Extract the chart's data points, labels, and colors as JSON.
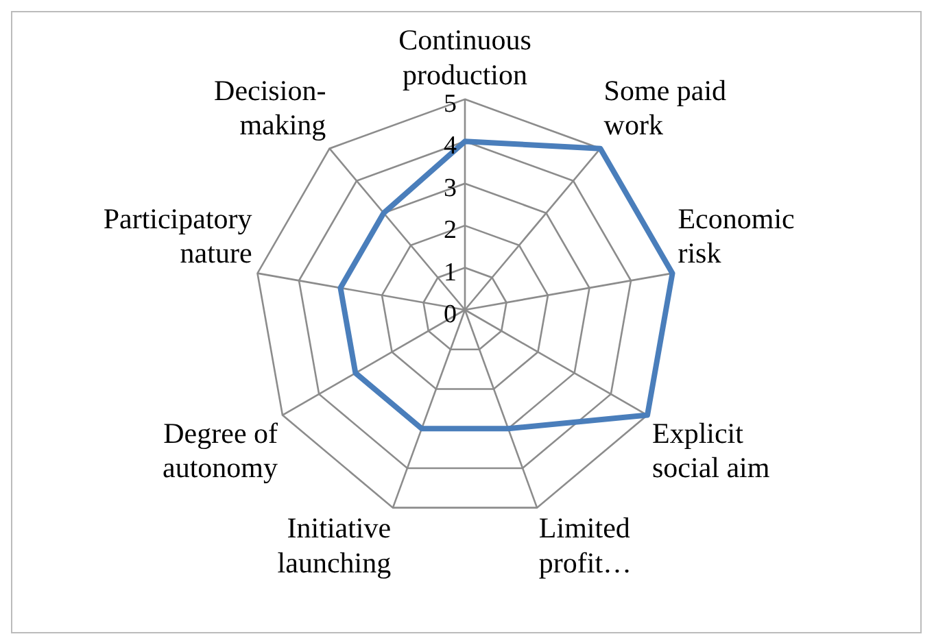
{
  "chart_data": {
    "type": "radar",
    "categories": [
      "Continuous production",
      "Some paid work",
      "Economic risk",
      "Explicit social aim",
      "Limited profit…",
      "Initiative launching",
      "Degree of autonomy",
      "Participatory nature",
      "Decision-making"
    ],
    "series": [
      {
        "color": "#4a7ebb",
        "values": [
          4,
          5,
          5,
          5,
          3,
          3,
          3,
          3,
          3
        ]
      }
    ],
    "ylim": [
      0,
      5
    ],
    "yticks": [
      0,
      1,
      2,
      3,
      4,
      5
    ],
    "grid": true,
    "legend": false,
    "marker": "none",
    "line_style": "solid"
  }
}
